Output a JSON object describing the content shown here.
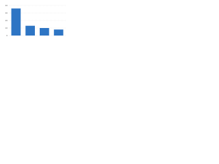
{
  "chart_data": {
    "type": "bar",
    "categories": [
      null,
      null,
      null,
      null
    ],
    "values": [
      36,
      13,
      10,
      8
    ],
    "color": "#2e75c4",
    "ylim": [
      0,
      40
    ],
    "yticks": [
      0,
      10,
      20,
      30,
      40
    ],
    "grid": true
  }
}
